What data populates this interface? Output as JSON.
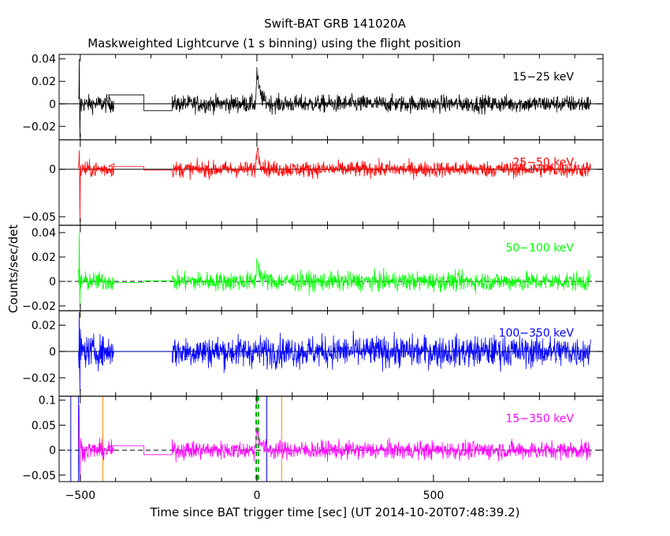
{
  "chart_data": {
    "type": "line",
    "title": "Swift-BAT GRB 141020A",
    "subtitle": "Maskweighted Lightcurve (1 s binning) using the flight position",
    "xlabel": "Time since BAT trigger time [sec] (UT 2014-10-20T07:48:39.2)",
    "ylabel": "Counts/sec/det",
    "xlim": [
      -560,
      980
    ],
    "xticks": [
      {
        "value": -500,
        "label": "−500"
      },
      {
        "value": 0,
        "label": "0"
      },
      {
        "value": 500,
        "label": "500"
      }
    ],
    "panels": [
      {
        "band": "15−25 keV",
        "color": "#000000",
        "ylim": [
          -0.032,
          0.044
        ],
        "yticks": [
          {
            "value": 0.04,
            "label": "0.04"
          },
          {
            "value": 0.02,
            "label": "0.02"
          },
          {
            "value": 0,
            "label": "0"
          },
          {
            "value": -0.02,
            "label": "−0.02"
          }
        ],
        "noise": 0.0055,
        "flat": [
          [
            -420,
            -320,
            0.008
          ],
          [
            -320,
            -240,
            -0.006
          ]
        ],
        "peak": 0.028,
        "early_spike": [
          0.04,
          -0.03
        ],
        "dashed_zero": false
      },
      {
        "band": "25−50 keV",
        "color": "#ff0000",
        "ylim": [
          -0.059,
          0.031
        ],
        "yticks": [
          {
            "value": 0,
            "label": "0"
          },
          {
            "value": -0.05,
            "label": "−0.05"
          }
        ],
        "noise": 0.006,
        "flat": [
          [
            -420,
            -320,
            0.003
          ],
          [
            -320,
            -240,
            -0.001
          ]
        ],
        "peak": 0.025,
        "early_spike": [
          0.02,
          -0.055
        ],
        "dashed_zero": false
      },
      {
        "band": "50−100 keV",
        "color": "#00ff00",
        "ylim": [
          -0.024,
          0.046
        ],
        "yticks": [
          {
            "value": 0.04,
            "label": "0.04"
          },
          {
            "value": 0.02,
            "label": "0.02"
          },
          {
            "value": 0,
            "label": "0"
          },
          {
            "value": -0.02,
            "label": "−0.02"
          }
        ],
        "noise": 0.0055,
        "flat": [
          [
            -420,
            -320,
            -0.001
          ],
          [
            -320,
            -240,
            0.0005
          ]
        ],
        "peak": 0.02,
        "early_spike": [
          0.04,
          -0.02
        ],
        "dashed_zero": true
      },
      {
        "band": "100−350 keV",
        "color": "#0000ff",
        "ylim": [
          -0.034,
          0.031
        ],
        "yticks": [
          {
            "value": 0.02,
            "label": "0.02"
          },
          {
            "value": 0,
            "label": "0"
          },
          {
            "value": -0.02,
            "label": "−0.02"
          }
        ],
        "noise": 0.0085,
        "flat": [
          [
            -420,
            -320,
            0.0
          ],
          [
            -320,
            -240,
            0.0
          ]
        ],
        "peak": 0.0,
        "early_spike": [
          0.03,
          -0.03
        ],
        "dashed_zero": false
      },
      {
        "band": "15−350 keV",
        "color": "#ff00ff",
        "ylim": [
          -0.063,
          0.108
        ],
        "yticks": [
          {
            "value": 0.1,
            "label": "0.1"
          },
          {
            "value": 0.05,
            "label": "0.05"
          },
          {
            "value": 0,
            "label": "0"
          },
          {
            "value": -0.05,
            "label": "−0.05"
          }
        ],
        "noise": 0.013,
        "flat": [
          [
            -420,
            -320,
            0.009
          ],
          [
            -320,
            -240,
            -0.009
          ]
        ],
        "peak": 0.05,
        "early_spike": [
          0.09,
          -0.06
        ],
        "dashed_zero": true,
        "markers": [
          {
            "x": -527,
            "color": "#0000ff",
            "style": "solid"
          },
          {
            "x": -505,
            "color": "#0000ff",
            "style": "solid"
          },
          {
            "x": -436,
            "color": "#ff8800",
            "style": "solid"
          },
          {
            "x": 70,
            "color": "#ff8800",
            "style": "solid"
          },
          {
            "x": 28,
            "color": "#0000ff",
            "style": "solid"
          },
          {
            "x": -2,
            "color": "#00aa00",
            "style": "dashed"
          },
          {
            "x": 4,
            "color": "#00aa00",
            "style": "dashed"
          }
        ]
      }
    ],
    "data_segments": [
      [
        -505,
        -405
      ],
      [
        -240,
        945
      ]
    ]
  }
}
